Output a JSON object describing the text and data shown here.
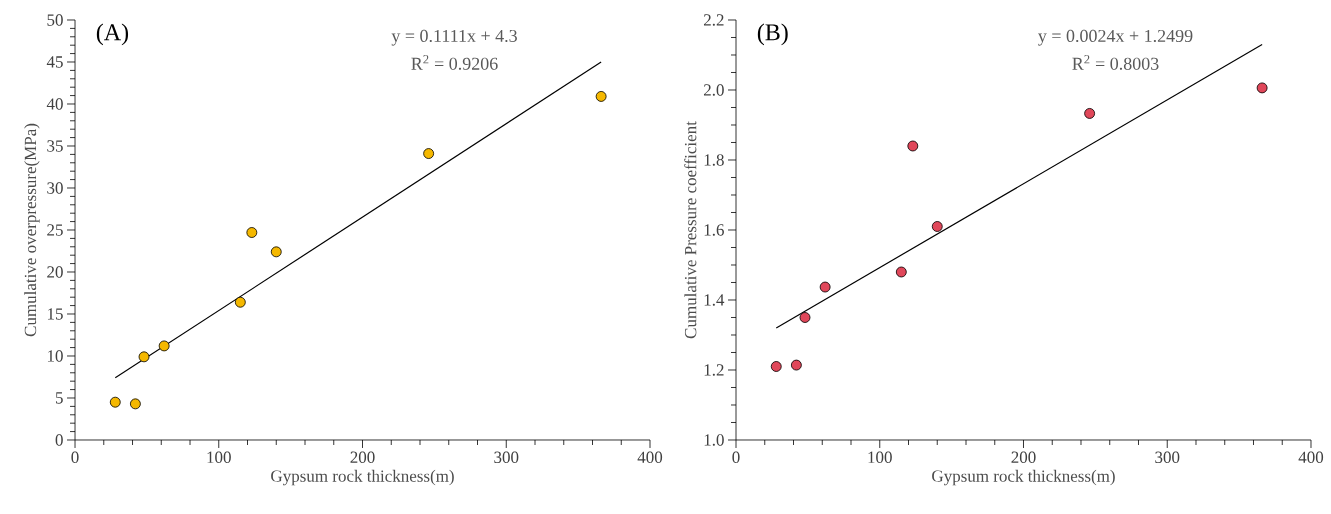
{
  "chart_data": [
    {
      "type": "scatter",
      "title": "(A)",
      "xlabel": "Gypsum rock thickness(m)",
      "ylabel": "Cumulative overpressure(MPa)",
      "annotations": [
        "y = 0.1111x + 4.3",
        "R$^{2}$ = 0.9206"
      ],
      "marker": "circle",
      "grid": false,
      "xlim": [
        0,
        400
      ],
      "xticks": [
        0,
        100,
        200,
        300,
        400
      ],
      "ylim": [
        0,
        50
      ],
      "yticks": [
        0,
        5,
        10,
        15,
        20,
        25,
        30,
        35,
        40,
        45,
        50
      ],
      "series": [
        {
          "color": "#f5b800",
          "x": [
            28,
            42,
            48,
            62,
            115,
            123,
            140,
            246,
            366
          ],
          "values": [
            4.5,
            4.3,
            9.9,
            11.2,
            16.4,
            24.7,
            22.4,
            34.1,
            40.9
          ]
        },
        {
          "type": "line",
          "color": "#000000",
          "marker": "none",
          "x": [
            28,
            366
          ],
          "values": [
            7.4,
            45.0
          ]
        }
      ]
    },
    {
      "type": "scatter",
      "title": "(B)",
      "xlabel": "Gypsum rock thickness(m)",
      "ylabel": "Cumulative  Pressure coefficient",
      "annotations": [
        "y = 0.0024x + 1.2499",
        "R$^{2}$ = 0.8003"
      ],
      "marker": "circle",
      "grid": false,
      "xlim": [
        0,
        400
      ],
      "xticks": [
        0,
        100,
        200,
        300,
        400
      ],
      "ylim": [
        1.0,
        2.2
      ],
      "yticks": [
        {
          "value": 1.0,
          "label": "1.0"
        },
        1.2,
        1.4,
        1.6,
        1.8,
        {
          "value": 2.0,
          "label": "2.0"
        },
        2.2
      ],
      "series": [
        {
          "color": "#e0475a",
          "x": [
            28,
            42,
            48,
            62,
            115,
            123,
            140,
            246,
            366
          ],
          "values": [
            1.21,
            1.214,
            1.35,
            1.437,
            1.48,
            1.84,
            1.61,
            1.933,
            2.006
          ]
        },
        {
          "type": "line",
          "color": "#000000",
          "marker": "none",
          "x": [
            28,
            366
          ],
          "values": [
            1.32,
            2.13
          ]
        }
      ]
    }
  ]
}
